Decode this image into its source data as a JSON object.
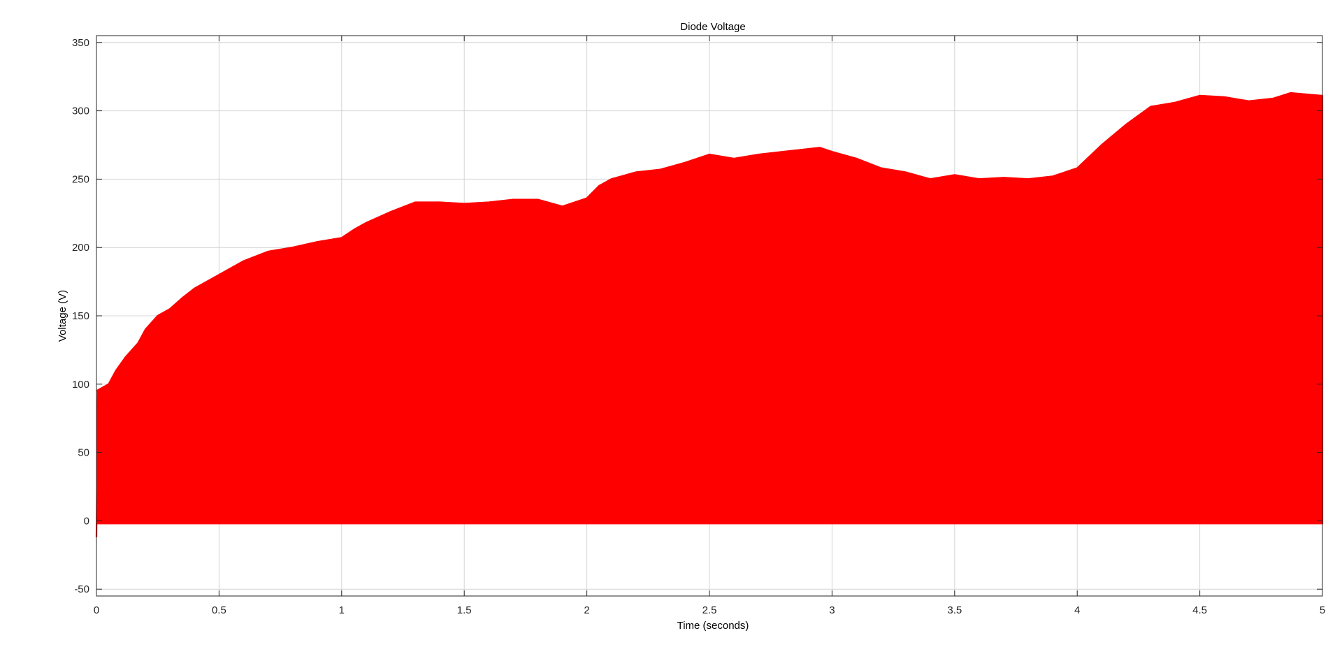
{
  "chart_data": {
    "type": "line",
    "title": "Diode Voltage",
    "xlabel": "Time (seconds)",
    "ylabel": "Voltage (V)",
    "xlim": [
      0,
      5
    ],
    "ylim": [
      -55,
      355
    ],
    "x_ticks": [
      "0",
      "0.5",
      "1",
      "1.5",
      "2",
      "2.5",
      "3",
      "3.5",
      "4",
      "4.5",
      "5"
    ],
    "y_ticks": [
      "-50",
      "0",
      "50",
      "100",
      "150",
      "200",
      "250",
      "300",
      "350"
    ],
    "grid": true,
    "legend": "none",
    "series": [
      {
        "color": "#ff0000",
        "description": "rectified oscillation between ~0 V and a rising peak envelope",
        "lower_bound": -2,
        "peak_envelope": {
          "x": [
            0,
            0.02,
            0.05,
            0.08,
            0.12,
            0.17,
            0.2,
            0.25,
            0.3,
            0.35,
            0.4,
            0.5,
            0.6,
            0.7,
            0.8,
            0.9,
            1.0,
            1.05,
            1.1,
            1.2,
            1.3,
            1.4,
            1.5,
            1.6,
            1.7,
            1.8,
            1.9,
            2.0,
            2.05,
            2.1,
            2.2,
            2.3,
            2.4,
            2.5,
            2.6,
            2.7,
            2.8,
            2.9,
            2.95,
            3.0,
            3.1,
            3.2,
            3.3,
            3.4,
            3.5,
            3.6,
            3.7,
            3.8,
            3.9,
            4.0,
            4.1,
            4.2,
            4.3,
            4.4,
            4.5,
            4.6,
            4.7,
            4.8,
            4.87,
            5.0
          ],
          "y": [
            95,
            97,
            100,
            110,
            120,
            130,
            140,
            150,
            155,
            163,
            170,
            180,
            190,
            197,
            200,
            204,
            207,
            213,
            218,
            226,
            233,
            233,
            232,
            233,
            235,
            235,
            230,
            236,
            245,
            250,
            255,
            257,
            262,
            268,
            265,
            268,
            270,
            272,
            273,
            270,
            265,
            258,
            255,
            250,
            253,
            250,
            251,
            250,
            252,
            258,
            275,
            290,
            303,
            306,
            311,
            310,
            307,
            309,
            313,
            311
          ]
        }
      }
    ]
  }
}
